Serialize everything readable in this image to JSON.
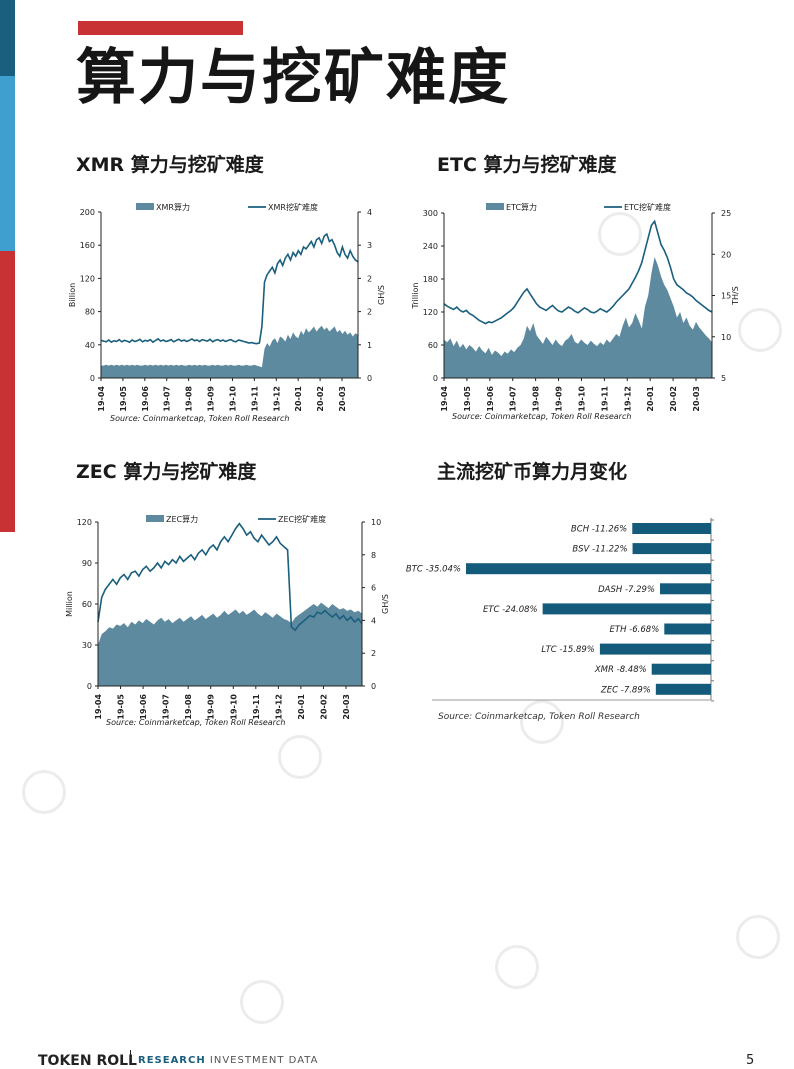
{
  "page": {
    "title": "算力与挖矿难度",
    "page_number": "5"
  },
  "footer": {
    "brand": "TOKEN ROLL",
    "nav_research": "RESEARCH",
    "nav_rest": "INVESTMENT   DATA"
  },
  "colors": {
    "area": "#5e8aa0",
    "line": "#1a5f7e",
    "bar": "#145a7a",
    "accent": "#c83234"
  },
  "chart_data": [
    {
      "id": "xmr",
      "section_title": "XMR 算力与挖矿难度",
      "type": "area",
      "source": "Source: Coinmarketcap, Token Roll Research",
      "legend": {
        "area": "XMR算力",
        "line": "XMR挖矿难度"
      },
      "ylabel": "Billion",
      "y2label": "GH/S",
      "ylim": [
        0,
        200
      ],
      "yticks": [
        "0",
        "40",
        "80",
        "120",
        "160",
        "200"
      ],
      "y2lim": [
        0,
        4.5
      ],
      "y2ticks": [
        "0",
        "1",
        "2",
        "2",
        "3",
        "4"
      ],
      "xticks": [
        "19-04",
        "19-05",
        "19-06",
        "19-07",
        "19-08",
        "19-09",
        "19-10",
        "19-11",
        "19-12",
        "20-01",
        "20-02",
        "20-03"
      ],
      "series": [
        {
          "name": "XMR算力",
          "type": "area",
          "values": [
            15,
            15,
            16,
            15,
            16,
            15,
            16,
            15,
            16,
            15,
            16,
            15,
            16,
            15,
            16,
            15,
            15,
            16,
            15,
            16,
            15,
            16,
            15,
            16,
            15,
            16,
            15,
            16,
            15,
            16,
            15,
            16,
            15,
            15,
            16,
            15,
            16,
            15,
            16,
            15,
            16,
            15,
            15,
            16,
            15,
            16,
            15,
            15,
            16,
            15,
            16,
            15,
            15,
            16,
            15,
            15,
            16,
            15,
            15,
            16,
            15,
            14,
            13,
            35,
            42,
            38,
            45,
            48,
            42,
            50,
            48,
            44,
            52,
            47,
            55,
            50,
            48,
            57,
            52,
            60,
            55,
            58,
            62,
            56,
            60,
            63,
            58,
            61,
            56,
            59,
            62,
            55,
            58,
            53,
            57,
            52,
            55,
            50,
            54,
            52
          ]
        },
        {
          "name": "XMR挖矿难度",
          "type": "line",
          "axis": "right",
          "values": [
            1.02,
            1.0,
            0.98,
            1.03,
            0.97,
            1.01,
            0.99,
            1.04,
            0.98,
            1.02,
            1.0,
            0.97,
            1.03,
            0.99,
            1.01,
            1.05,
            0.98,
            1.02,
            1.0,
            1.04,
            0.97,
            1.02,
            1.06,
            1.0,
            1.03,
            0.99,
            1.01,
            1.04,
            0.98,
            1.02,
            1.05,
            1.0,
            1.03,
            0.99,
            1.02,
            1.06,
            1.01,
            1.03,
            0.99,
            1.04,
            1.02,
            1.0,
            1.05,
            0.98,
            1.02,
            1.04,
            1.0,
            1.03,
            0.99,
            1.02,
            1.04,
            1.0,
            0.98,
            1.03,
            1.01,
            0.99,
            0.97,
            0.95,
            0.96,
            0.94,
            0.93,
            0.95,
            1.4,
            2.6,
            2.8,
            2.9,
            3.0,
            2.85,
            3.1,
            3.2,
            3.05,
            3.25,
            3.35,
            3.2,
            3.4,
            3.3,
            3.45,
            3.35,
            3.55,
            3.5,
            3.6,
            3.7,
            3.55,
            3.75,
            3.8,
            3.65,
            3.85,
            3.9,
            3.7,
            3.75,
            3.6,
            3.4,
            3.3,
            3.55,
            3.35,
            3.25,
            3.45,
            3.3,
            3.2,
            3.15
          ]
        }
      ]
    },
    {
      "id": "etc",
      "section_title": "ETC 算力与挖矿难度",
      "type": "area",
      "source": "Source: Coinmarketcap, Token Roll Research",
      "legend": {
        "area": "ETC算力",
        "line": "ETC挖矿难度"
      },
      "ylabel": "Trillion",
      "y2label": "TH/S",
      "ylim": [
        0,
        300
      ],
      "yticks": [
        "0",
        "60",
        "120",
        "180",
        "240",
        "300"
      ],
      "y2lim": [
        5,
        25
      ],
      "y2ticks": [
        "5",
        "10",
        "15",
        "20",
        "25"
      ],
      "xticks": [
        "19-04",
        "19-05",
        "19-06",
        "19-07",
        "19-08",
        "19-09",
        "19-10",
        "19-11",
        "19-12",
        "20-01",
        "20-02",
        "20-03"
      ],
      "series": [
        {
          "name": "ETC算力",
          "type": "area",
          "values": [
            70,
            65,
            72,
            58,
            68,
            55,
            62,
            52,
            60,
            55,
            48,
            58,
            50,
            45,
            55,
            42,
            50,
            46,
            40,
            48,
            44,
            52,
            47,
            55,
            60,
            72,
            95,
            85,
            100,
            78,
            70,
            62,
            75,
            68,
            60,
            70,
            62,
            58,
            68,
            72,
            80,
            66,
            62,
            70,
            64,
            60,
            68,
            62,
            58,
            65,
            60,
            70,
            64,
            72,
            80,
            75,
            95,
            110,
            92,
            100,
            118,
            105,
            90,
            130,
            150,
            190,
            220,
            205,
            185,
            170,
            160,
            145,
            130,
            110,
            120,
            100,
            110,
            95,
            88,
            102,
            92,
            85,
            78,
            72,
            65
          ]
        },
        {
          "name": "ETC挖矿难度",
          "type": "line",
          "axis": "right",
          "values": [
            14.0,
            13.7,
            13.5,
            13.3,
            13.6,
            13.2,
            13.0,
            13.2,
            12.8,
            12.6,
            12.3,
            12.0,
            11.8,
            11.6,
            11.8,
            11.7,
            11.9,
            12.1,
            12.3,
            12.6,
            12.9,
            13.2,
            13.6,
            14.2,
            14.8,
            15.4,
            15.8,
            15.2,
            14.6,
            14.0,
            13.6,
            13.4,
            13.2,
            13.5,
            13.8,
            13.4,
            13.1,
            13.0,
            13.3,
            13.6,
            13.4,
            13.1,
            12.9,
            13.2,
            13.5,
            13.3,
            13.0,
            12.9,
            13.1,
            13.4,
            13.2,
            13.0,
            13.3,
            13.7,
            14.2,
            14.6,
            15.0,
            15.4,
            15.8,
            16.5,
            17.2,
            18.0,
            19.0,
            20.5,
            22.0,
            23.5,
            24.0,
            22.6,
            21.2,
            20.5,
            19.6,
            18.4,
            17.0,
            16.3,
            16.0,
            15.7,
            15.3,
            15.1,
            14.8,
            14.4,
            14.1,
            13.8,
            13.5,
            13.2,
            13.0
          ]
        }
      ]
    },
    {
      "id": "zec",
      "section_title": "ZEC 算力与挖矿难度",
      "type": "area",
      "source": "Source: Coinmarketcap, Token Roll Research",
      "legend": {
        "area": "ZEC算力",
        "line": "ZEC挖矿难度"
      },
      "ylabel": "Million",
      "y2label": "GH/S",
      "ylim": [
        0,
        120
      ],
      "yticks": [
        "0",
        "30",
        "60",
        "90",
        "120"
      ],
      "y2lim": [
        0,
        10
      ],
      "y2ticks": [
        "0",
        "2",
        "4",
        "6",
        "8",
        "10"
      ],
      "xticks": [
        "19-04",
        "19-05",
        "19-06",
        "19-07",
        "19-08",
        "19-09",
        "19-10",
        "19-11",
        "19-12",
        "20-01",
        "20-02",
        "20-03"
      ],
      "series": [
        {
          "name": "ZEC算力",
          "type": "area",
          "values": [
            30,
            38,
            40,
            43,
            42,
            45,
            44,
            46,
            43,
            47,
            45,
            48,
            46,
            49,
            47,
            45,
            48,
            50,
            47,
            49,
            46,
            48,
            50,
            47,
            49,
            51,
            48,
            50,
            52,
            49,
            51,
            53,
            50,
            52,
            55,
            52,
            54,
            56,
            53,
            55,
            52,
            54,
            56,
            53,
            51,
            54,
            52,
            50,
            53,
            51,
            49,
            48,
            46,
            50,
            52,
            54,
            56,
            58,
            60,
            58,
            61,
            59,
            57,
            60,
            58,
            56,
            57,
            55,
            56,
            54,
            55,
            53
          ]
        },
        {
          "name": "ZEC挖矿难度",
          "type": "line",
          "axis": "right",
          "values": [
            3.9,
            5.4,
            5.9,
            6.2,
            6.5,
            6.2,
            6.6,
            6.8,
            6.5,
            6.9,
            7.0,
            6.7,
            7.1,
            7.3,
            7.0,
            7.2,
            7.5,
            7.2,
            7.6,
            7.4,
            7.7,
            7.5,
            7.9,
            7.6,
            7.8,
            8.0,
            7.7,
            8.1,
            8.3,
            8.0,
            8.4,
            8.6,
            8.3,
            8.8,
            9.1,
            8.8,
            9.2,
            9.6,
            9.9,
            9.6,
            9.2,
            9.4,
            9.0,
            8.8,
            9.2,
            8.9,
            8.6,
            8.8,
            9.1,
            8.7,
            8.5,
            8.3,
            3.6,
            3.4,
            3.7,
            3.9,
            4.1,
            4.3,
            4.2,
            4.5,
            4.4,
            4.6,
            4.4,
            4.2,
            4.4,
            4.1,
            4.3,
            4.0,
            4.2,
            3.9,
            4.1,
            3.8
          ]
        }
      ]
    },
    {
      "id": "monthly",
      "section_title": "主流挖矿币算力月变化",
      "type": "bar",
      "orientation": "horizontal",
      "source": "Source: Coinmarketcap, Token Roll Research",
      "categories": [
        "BCH",
        "BSV",
        "BTC",
        "DASH",
        "ETC",
        "ETH",
        "LTC",
        "XMR",
        "ZEC"
      ],
      "labels": [
        "BCH -11.26%",
        "BSV -11.22%",
        "BTC -35.04%",
        "DASH -7.29%",
        "ETC -24.08%",
        "ETH -6.68%",
        "LTC -15.89%",
        "XMR -8.48%",
        "ZEC -7.89%"
      ],
      "values": [
        -11.26,
        -11.22,
        -35.04,
        -7.29,
        -24.08,
        -6.68,
        -15.89,
        -8.48,
        -7.89
      ],
      "xlim": [
        -36,
        0
      ]
    }
  ]
}
